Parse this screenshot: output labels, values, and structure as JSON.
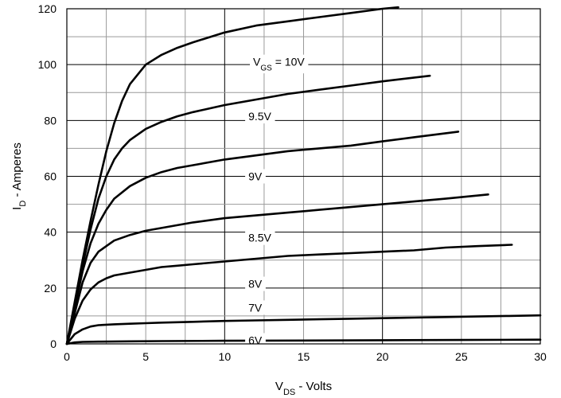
{
  "chart_data": {
    "type": "line",
    "xlabel": "V_DS - Volts",
    "xlabel_main": "V",
    "xlabel_sub": "DS",
    "xlabel_rest": " - Volts",
    "ylabel": "I_D - Amperes",
    "ylabel_main": "I",
    "ylabel_sub": "D",
    "ylabel_rest": " - Amperes",
    "xlim": [
      0,
      30
    ],
    "ylim": [
      0,
      120
    ],
    "xticks": [
      "0",
      "5",
      "10",
      "15",
      "20",
      "25",
      "30"
    ],
    "yticks": [
      "0",
      "20",
      "40",
      "60",
      "80",
      "100",
      "120"
    ],
    "grid": true,
    "series": [
      {
        "name": "V_GS = 10V",
        "label_main": "V",
        "label_sub": "GS",
        "label_rest": " = 10V",
        "label_x": 11.8,
        "label_y": 101,
        "x": [
          0,
          0.5,
          1,
          1.5,
          2,
          2.5,
          3,
          3.5,
          4,
          5,
          6,
          7,
          8,
          10,
          12,
          14,
          16,
          18,
          20,
          21
        ],
        "y": [
          0,
          15,
          30,
          44,
          57,
          69,
          79,
          87,
          93,
          100,
          103.5,
          106,
          108,
          111.5,
          114,
          115.5,
          117,
          118.5,
          120,
          120.5
        ]
      },
      {
        "name": "9.5V",
        "label_x": 11.5,
        "label_y": 81.5,
        "x": [
          0,
          0.5,
          1,
          1.5,
          2,
          2.5,
          3,
          3.5,
          4,
          5,
          6,
          7,
          8,
          10,
          12,
          14,
          16,
          18,
          20,
          23
        ],
        "y": [
          0,
          14,
          28,
          41,
          52,
          60,
          66,
          70,
          73,
          77,
          79.5,
          81.5,
          83,
          85.5,
          87.5,
          89.5,
          91,
          92.5,
          94,
          96
        ]
      },
      {
        "name": "9V",
        "label_x": 11.5,
        "label_y": 60,
        "x": [
          0,
          0.5,
          1,
          1.5,
          2,
          2.5,
          3,
          4,
          5,
          6,
          7,
          8,
          10,
          12,
          14,
          16,
          18,
          20,
          22,
          24.8
        ],
        "y": [
          0,
          13,
          26,
          36,
          43,
          48,
          52,
          56.5,
          59.5,
          61.5,
          63,
          64,
          66,
          67.5,
          69,
          70,
          71,
          72.5,
          74,
          76
        ]
      },
      {
        "name": "8.5V",
        "label_x": 11.5,
        "label_y": 38,
        "x": [
          0,
          0.5,
          1,
          1.5,
          2,
          2.5,
          3,
          4,
          5,
          6,
          7,
          8,
          10,
          12,
          14,
          16,
          18,
          20,
          22,
          24,
          26.7
        ],
        "y": [
          0,
          11,
          22,
          29,
          33,
          35,
          37,
          39,
          40.5,
          41.5,
          42.5,
          43.5,
          45,
          46,
          47,
          48,
          49,
          50,
          51,
          52,
          53.5
        ]
      },
      {
        "name": "8V",
        "label_x": 11.5,
        "label_y": 21.5,
        "x": [
          0,
          0.5,
          1,
          1.5,
          2,
          2.5,
          3,
          4,
          5,
          6,
          7,
          8,
          10,
          12,
          14,
          16,
          18,
          20,
          22,
          24,
          26,
          28.2
        ],
        "y": [
          0,
          9,
          15.5,
          19.5,
          22,
          23.5,
          24.5,
          25.5,
          26.5,
          27.5,
          28,
          28.5,
          29.5,
          30.5,
          31.5,
          32,
          32.5,
          33,
          33.5,
          34.5,
          35,
          35.5
        ]
      },
      {
        "name": "7V",
        "label_x": 11.5,
        "label_y": 13,
        "x": [
          0,
          0.5,
          1,
          1.5,
          2,
          3,
          4,
          5,
          6,
          8,
          10,
          12,
          14,
          16,
          18,
          20,
          22,
          24,
          26,
          28,
          30
        ],
        "y": [
          0,
          3.5,
          5.2,
          6.2,
          6.7,
          7,
          7.2,
          7.4,
          7.6,
          7.9,
          8.2,
          8.4,
          8.6,
          8.8,
          9,
          9.2,
          9.4,
          9.6,
          9.8,
          10,
          10.2
        ]
      },
      {
        "name": "6V",
        "label_x": 11.5,
        "label_y": 1.3,
        "x": [
          0,
          0.5,
          1,
          2,
          4,
          6,
          10,
          15,
          20,
          25,
          30
        ],
        "y": [
          0,
          0.5,
          0.7,
          0.8,
          0.9,
          1,
          1.1,
          1.2,
          1.3,
          1.4,
          1.5
        ]
      }
    ]
  }
}
